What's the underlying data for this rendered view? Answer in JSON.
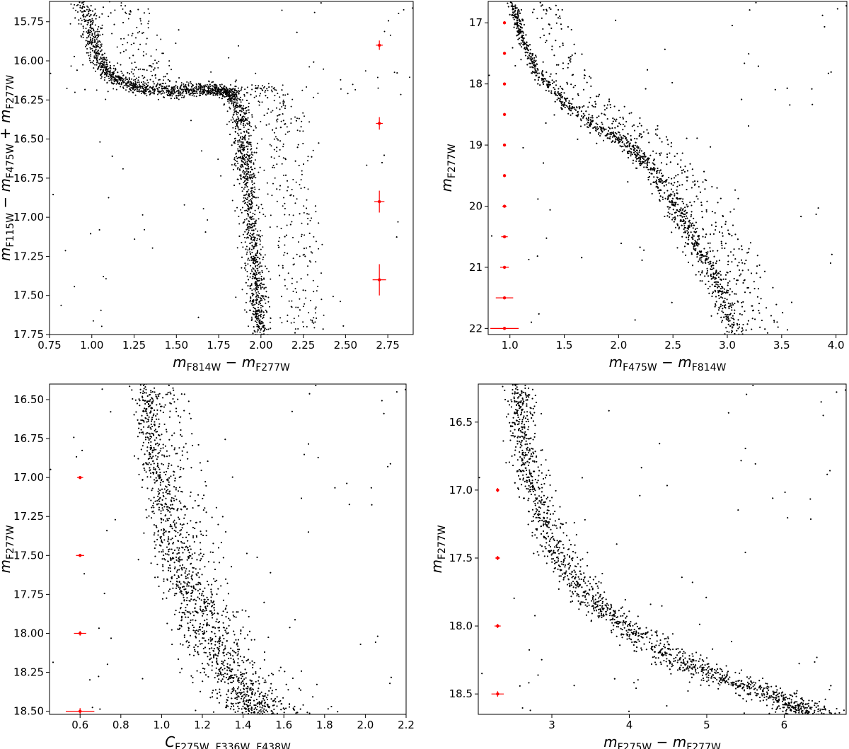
{
  "chart_data": [
    {
      "type": "scatter",
      "title": "",
      "xlabel": {
        "base": "m",
        "sub1": "F814W",
        "op": " − ",
        "base2": "m",
        "sub2": "F277W"
      },
      "ylabel": {
        "parts": [
          [
            "m",
            "F115W"
          ],
          [
            " − m",
            "F475W"
          ],
          [
            " + m",
            "F277W"
          ]
        ]
      },
      "xlim": [
        0.75,
        2.9
      ],
      "ylim": [
        15.62,
        17.75
      ],
      "y_inverted": true,
      "xticks": [
        "0.75",
        "1.00",
        "1.25",
        "1.50",
        "1.75",
        "2.00",
        "2.25",
        "2.50",
        "2.75"
      ],
      "xtick_values": [
        0.75,
        1.0,
        1.25,
        1.5,
        1.75,
        2.0,
        2.25,
        2.5,
        2.75
      ],
      "yticks": [
        "15.75",
        "16.00",
        "16.25",
        "16.50",
        "16.75",
        "17.00",
        "17.25",
        "17.50",
        "17.75"
      ],
      "ytick_values": [
        15.75,
        16.0,
        16.25,
        16.5,
        16.75,
        17.0,
        17.25,
        17.5,
        17.75
      ],
      "series": [
        {
          "kind": "points",
          "color": "#000000",
          "sequence_points": [
            [
              0.95,
              15.62
            ],
            [
              1.0,
              15.85
            ],
            [
              1.05,
              16.02
            ],
            [
              1.15,
              16.12
            ],
            [
              1.3,
              16.18
            ],
            [
              1.5,
              16.2
            ],
            [
              1.7,
              16.18
            ],
            [
              1.82,
              16.2
            ],
            [
              1.88,
              16.35
            ],
            [
              1.9,
              16.55
            ],
            [
              1.92,
              16.75
            ],
            [
              1.94,
              17.0
            ],
            [
              1.96,
              17.25
            ],
            [
              1.98,
              17.5
            ],
            [
              2.0,
              17.75
            ]
          ],
          "sequence_width": [
            0.05,
            0.05
          ],
          "binary_offset": 0.25,
          "count": 3400
        },
        {
          "kind": "errorbars",
          "color": "#ff0000",
          "points": [
            {
              "x": 2.7,
              "y": 15.9,
              "xerr": 0.02,
              "yerr": 0.03
            },
            {
              "x": 2.7,
              "y": 16.4,
              "xerr": 0.02,
              "yerr": 0.04
            },
            {
              "x": 2.7,
              "y": 16.9,
              "xerr": 0.03,
              "yerr": 0.07
            },
            {
              "x": 2.7,
              "y": 17.4,
              "xerr": 0.04,
              "yerr": 0.1
            }
          ]
        }
      ]
    },
    {
      "type": "scatter",
      "title": "",
      "xlabel": {
        "base": "m",
        "sub1": "F475W",
        "op": " − ",
        "base2": "m",
        "sub2": "F814W"
      },
      "ylabel": {
        "parts": [
          [
            "m",
            "F277W"
          ]
        ]
      },
      "xlim": [
        0.8,
        4.1
      ],
      "ylim": [
        16.65,
        22.1
      ],
      "y_inverted": true,
      "xticks": [
        "1.0",
        "1.5",
        "2.0",
        "2.5",
        "3.0",
        "3.5",
        "4.0"
      ],
      "xtick_values": [
        1.0,
        1.5,
        2.0,
        2.5,
        3.0,
        3.5,
        4.0
      ],
      "yticks": [
        "17",
        "18",
        "19",
        "20",
        "21",
        "22"
      ],
      "ytick_values": [
        17,
        18,
        19,
        20,
        21,
        22
      ],
      "series": [
        {
          "kind": "points",
          "color": "#000000",
          "sequence_points": [
            [
              1.02,
              16.65
            ],
            [
              1.1,
              17.2
            ],
            [
              1.25,
              17.8
            ],
            [
              1.5,
              18.3
            ],
            [
              1.8,
              18.7
            ],
            [
              2.1,
              19.0
            ],
            [
              2.3,
              19.4
            ],
            [
              2.5,
              19.9
            ],
            [
              2.65,
              20.4
            ],
            [
              2.8,
              20.9
            ],
            [
              2.95,
              21.4
            ],
            [
              3.1,
              22.1
            ]
          ],
          "sequence_width": [
            0.03,
            0.12
          ],
          "binary_offset": 0.3,
          "count": 3600
        },
        {
          "kind": "errorbars",
          "color": "#ff0000",
          "points": [
            {
              "x": 0.95,
              "y": 17.0,
              "xerr": 0.005,
              "yerr": 0.01
            },
            {
              "x": 0.95,
              "y": 17.5,
              "xerr": 0.005,
              "yerr": 0.01
            },
            {
              "x": 0.95,
              "y": 18.0,
              "xerr": 0.005,
              "yerr": 0.01
            },
            {
              "x": 0.95,
              "y": 18.5,
              "xerr": 0.006,
              "yerr": 0.01
            },
            {
              "x": 0.95,
              "y": 19.0,
              "xerr": 0.007,
              "yerr": 0.01
            },
            {
              "x": 0.95,
              "y": 19.5,
              "xerr": 0.008,
              "yerr": 0.01
            },
            {
              "x": 0.95,
              "y": 20.0,
              "xerr": 0.02,
              "yerr": 0.01
            },
            {
              "x": 0.95,
              "y": 20.5,
              "xerr": 0.03,
              "yerr": 0.01
            },
            {
              "x": 0.95,
              "y": 21.0,
              "xerr": 0.04,
              "yerr": 0.01
            },
            {
              "x": 0.95,
              "y": 21.5,
              "xerr": 0.08,
              "yerr": 0.015
            },
            {
              "x": 0.95,
              "y": 22.0,
              "xerr": 0.13,
              "yerr": 0.02
            }
          ]
        }
      ]
    },
    {
      "type": "scatter",
      "title": "",
      "xlabel": {
        "base": "C",
        "sub1": "F275W, F336W, F438W",
        "op": "",
        "base2": "",
        "sub2": ""
      },
      "ylabel": {
        "parts": [
          [
            "m",
            "F277W"
          ]
        ]
      },
      "xlim": [
        0.45,
        2.2
      ],
      "ylim": [
        16.4,
        18.52
      ],
      "y_inverted": true,
      "xticks": [
        "0.6",
        "0.8",
        "1.0",
        "1.2",
        "1.4",
        "1.6",
        "1.8",
        "2.0",
        "2.2"
      ],
      "xtick_values": [
        0.6,
        0.8,
        1.0,
        1.2,
        1.4,
        1.6,
        1.8,
        2.0,
        2.2
      ],
      "yticks": [
        "16.50",
        "16.75",
        "17.00",
        "17.25",
        "17.50",
        "17.75",
        "18.00",
        "18.25",
        "18.50"
      ],
      "ytick_values": [
        16.5,
        16.75,
        17.0,
        17.25,
        17.5,
        17.75,
        18.0,
        18.25,
        18.5
      ],
      "series": [
        {
          "kind": "points",
          "color": "#000000",
          "sequence_points": [
            [
              0.92,
              16.4
            ],
            [
              0.95,
              16.75
            ],
            [
              1.0,
              17.1
            ],
            [
              1.05,
              17.4
            ],
            [
              1.12,
              17.7
            ],
            [
              1.2,
              17.95
            ],
            [
              1.3,
              18.2
            ],
            [
              1.4,
              18.4
            ],
            [
              1.5,
              18.52
            ]
          ],
          "sequence_width": [
            0.05,
            0.15
          ],
          "binary_offset": 0.12,
          "count": 3400
        },
        {
          "kind": "errorbars",
          "color": "#ff0000",
          "points": [
            {
              "x": 0.6,
              "y": 17.0,
              "xerr": 0.015,
              "yerr": 0.01
            },
            {
              "x": 0.6,
              "y": 17.5,
              "xerr": 0.02,
              "yerr": 0.01
            },
            {
              "x": 0.6,
              "y": 18.0,
              "xerr": 0.03,
              "yerr": 0.015
            },
            {
              "x": 0.6,
              "y": 18.5,
              "xerr": 0.07,
              "yerr": 0.02
            }
          ]
        }
      ]
    },
    {
      "type": "scatter",
      "title": "",
      "xlabel": {
        "base": "m",
        "sub1": "F275W",
        "op": " − ",
        "base2": "m",
        "sub2": "F277W"
      },
      "ylabel": {
        "parts": [
          [
            "m",
            "F277W"
          ]
        ]
      },
      "xlim": [
        2.05,
        6.8
      ],
      "ylim": [
        16.22,
        18.65
      ],
      "y_inverted": true,
      "xticks": [
        "3",
        "4",
        "5",
        "6"
      ],
      "xtick_values": [
        3,
        4,
        5,
        6
      ],
      "yticks": [
        "16.5",
        "17.0",
        "17.5",
        "18.0",
        "18.5"
      ],
      "ytick_values": [
        16.5,
        17.0,
        17.5,
        18.0,
        18.5
      ],
      "series": [
        {
          "kind": "points",
          "color": "#000000",
          "sequence_points": [
            [
              2.55,
              16.22
            ],
            [
              2.6,
              16.6
            ],
            [
              2.75,
              17.0
            ],
            [
              3.0,
              17.4
            ],
            [
              3.4,
              17.75
            ],
            [
              3.9,
              18.0
            ],
            [
              4.6,
              18.25
            ],
            [
              5.3,
              18.4
            ],
            [
              6.0,
              18.55
            ],
            [
              6.4,
              18.65
            ]
          ],
          "sequence_width": [
            0.12,
            0.3
          ],
          "binary_offset": 0.08,
          "count": 3600
        },
        {
          "kind": "errorbars",
          "color": "#ff0000",
          "points": [
            {
              "x": 2.3,
              "y": 17.0,
              "xerr": 0.02,
              "yerr": 0.015
            },
            {
              "x": 2.3,
              "y": 17.5,
              "xerr": 0.03,
              "yerr": 0.015
            },
            {
              "x": 2.3,
              "y": 18.0,
              "xerr": 0.04,
              "yerr": 0.015
            },
            {
              "x": 2.3,
              "y": 18.5,
              "xerr": 0.08,
              "yerr": 0.02
            }
          ]
        }
      ]
    }
  ]
}
